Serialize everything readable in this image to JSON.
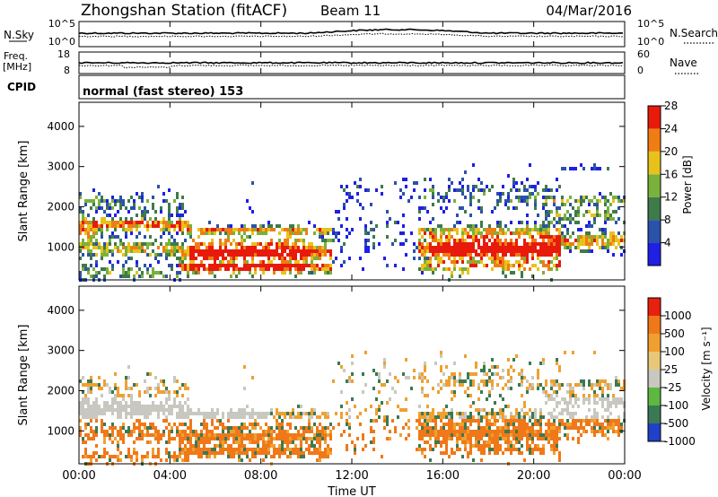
{
  "header": {
    "title": "Zhongshan Station (fitACF)",
    "beam": "Beam 11",
    "date": "04/Mar/2016"
  },
  "noise_panel": {
    "left_label": "N.Sky",
    "right_label": "N.Search",
    "left_ticks": [
      "10^5",
      "10^0"
    ],
    "right_ticks": [
      "10^5",
      "10^0"
    ]
  },
  "freq_panel": {
    "left_label_1": "Freq.",
    "left_label_2": "[MHz]",
    "right_label": "Nave",
    "left_ticks": [
      "18",
      "8"
    ],
    "right_ticks": [
      "60",
      "0"
    ]
  },
  "cpid": {
    "label": "CPID",
    "text": "normal (fast stereo) 153"
  },
  "chart_data": [
    {
      "type": "heatmap",
      "name": "power",
      "ylabel": "Slant Range [km]",
      "ylim": [
        180,
        4600
      ],
      "yticks": [
        1000,
        2000,
        3000,
        4000
      ],
      "colorbar": {
        "label": "Power [dB]",
        "ticks": [
          "4",
          "8",
          "12",
          "16",
          "20",
          "24",
          "28"
        ],
        "colors": [
          "#1f1fe6",
          "#2a52a8",
          "#3f7a4a",
          "#79b13a",
          "#e8c21a",
          "#ef7d14",
          "#e81a0c"
        ]
      }
    },
    {
      "type": "heatmap",
      "name": "velocity",
      "ylabel": "Slant Range [km]",
      "ylim": [
        180,
        4600
      ],
      "yticks": [
        1000,
        2000,
        3000,
        4000
      ],
      "colorbar": {
        "label": "Velocity [m s⁻¹]",
        "ticks": [
          "1000",
          "500",
          "100",
          "25",
          "-25",
          "-100",
          "-500",
          "-1000"
        ],
        "colors": [
          "#2040c8",
          "#3a7a52",
          "#5cb840",
          "#c8c8c0",
          "#e8c878",
          "#f0a030",
          "#f07818",
          "#e82010"
        ]
      }
    }
  ],
  "x_axis": {
    "label": "Time UT",
    "ticks": [
      "00:00",
      "04:00",
      "08:00",
      "12:00",
      "16:00",
      "20:00",
      "00:00"
    ]
  }
}
